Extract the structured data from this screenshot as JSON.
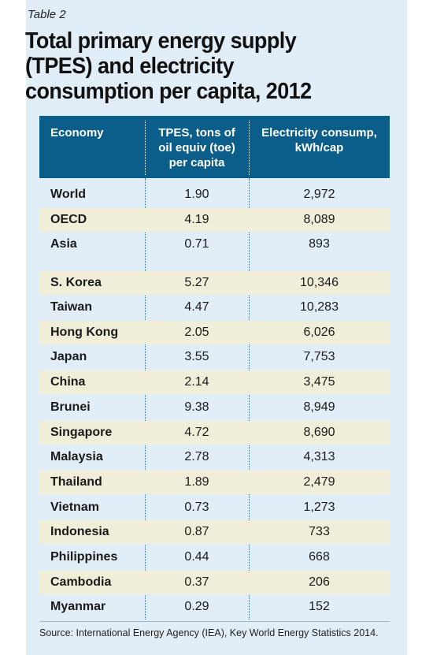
{
  "table_label": "Table 2",
  "title_lines": [
    "Total primary energy supply",
    "(TPES) and electricity",
    "consumption per capita, 2012"
  ],
  "headers": {
    "col1": "Economy",
    "col2": [
      "TPES, tons of",
      "oil equiv (toe)",
      "per capita"
    ],
    "col3": [
      "Electricity consump,",
      "kWh/cap"
    ]
  },
  "rows": [
    {
      "economy": "World",
      "tpes": "1.90",
      "electricity": "2,972"
    },
    {
      "economy": "OECD",
      "tpes": "4.19",
      "electricity": "8,089"
    },
    {
      "economy": "Asia",
      "tpes": "0.71",
      "electricity": "893"
    },
    {
      "economy": "S. Korea",
      "tpes": "5.27",
      "electricity": "10,346"
    },
    {
      "economy": "Taiwan",
      "tpes": "4.47",
      "electricity": "10,283"
    },
    {
      "economy": "Hong Kong",
      "tpes": "2.05",
      "electricity": "6,026"
    },
    {
      "economy": "Japan",
      "tpes": "3.55",
      "electricity": "7,753"
    },
    {
      "economy": "China",
      "tpes": "2.14",
      "electricity": "3,475"
    },
    {
      "economy": "Brunei",
      "tpes": "9.38",
      "electricity": "8,949"
    },
    {
      "economy": "Singapore",
      "tpes": "4.72",
      "electricity": "8,690"
    },
    {
      "economy": "Malaysia",
      "tpes": "2.78",
      "electricity": "4,313"
    },
    {
      "economy": "Thailand",
      "tpes": "1.89",
      "electricity": "2,479"
    },
    {
      "economy": "Vietnam",
      "tpes": "0.73",
      "electricity": "1,273"
    },
    {
      "economy": "Indonesia",
      "tpes": "0.87",
      "electricity": "733"
    },
    {
      "economy": "Philippines",
      "tpes": "0.44",
      "electricity": "668"
    },
    {
      "economy": "Cambodia",
      "tpes": "0.37",
      "electricity": "206"
    },
    {
      "economy": "Myanmar",
      "tpes": "0.29",
      "electricity": "152"
    }
  ],
  "source": "Source: International Energy Agency (IEA), Key World Energy Statistics 2014.",
  "colors": {
    "background": "#e2eef7",
    "header_fill": "#0b5e8a",
    "row_shade": "#f0eed8",
    "text": "#1a1a1a"
  }
}
